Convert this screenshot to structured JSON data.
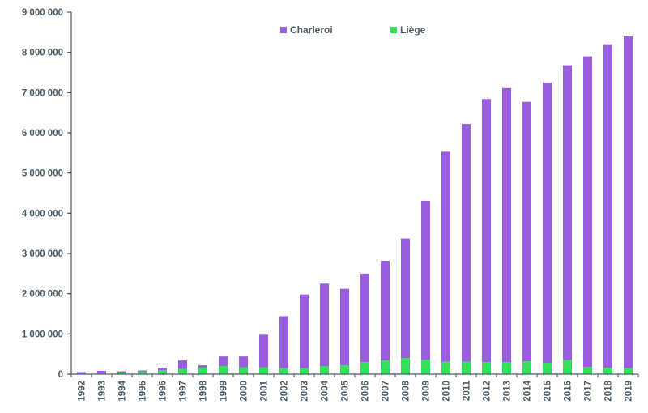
{
  "chart_data": {
    "type": "bar",
    "stacked": true,
    "categories": [
      "1992",
      "1993",
      "1994",
      "1995",
      "1996",
      "1997",
      "1998",
      "1999",
      "2000",
      "2001",
      "2002",
      "2003",
      "2004",
      "2005",
      "2006",
      "2007",
      "2008",
      "2009",
      "2010",
      "2011",
      "2012",
      "2013",
      "2014",
      "2015",
      "2016",
      "2017",
      "2018",
      "2019"
    ],
    "series": [
      {
        "name": "Liège",
        "color": "#33e05a",
        "values": [
          20000,
          20000,
          40000,
          60000,
          100000,
          130000,
          160000,
          200000,
          170000,
          170000,
          150000,
          150000,
          200000,
          220000,
          300000,
          340000,
          400000,
          360000,
          310000,
          310000,
          300000,
          300000,
          320000,
          280000,
          350000,
          180000,
          160000,
          150000
        ]
      },
      {
        "name": "Charleroi",
        "color": "#9b5ddf",
        "values": [
          30000,
          60000,
          30000,
          30000,
          60000,
          210000,
          60000,
          240000,
          270000,
          810000,
          1290000,
          1830000,
          2050000,
          1900000,
          2200000,
          2480000,
          2970000,
          3950000,
          5220000,
          5910000,
          6540000,
          6810000,
          6450000,
          6970000,
          7330000,
          7720000,
          8040000,
          8250000
        ]
      }
    ],
    "ylim": [
      0,
      9000000
    ],
    "yticks": [
      0,
      1000000,
      2000000,
      3000000,
      4000000,
      5000000,
      6000000,
      7000000,
      8000000,
      9000000
    ],
    "ytick_labels": [
      "0",
      "1 000 000",
      "2 000 000",
      "3 000 000",
      "4 000 000",
      "5 000 000",
      "6 000 000",
      "7 000 000",
      "8 000 000",
      "9 000 000"
    ],
    "title": "",
    "xlabel": "",
    "ylabel": "",
    "grid": false,
    "legend_position": "top-center",
    "legend_order": [
      "Charleroi",
      "Liège"
    ]
  }
}
